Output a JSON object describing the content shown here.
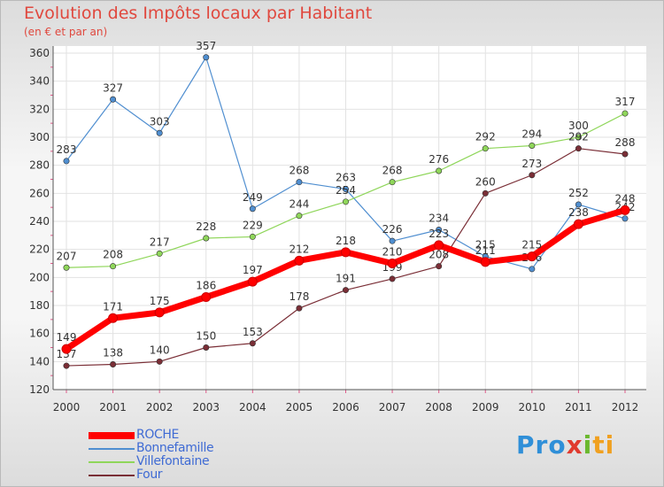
{
  "header": {
    "title": "Evolution des Impôts locaux par Habitant",
    "subtitle": "(en € et par an)"
  },
  "logo": {
    "part1": "Pro",
    "part2": "x",
    "part3": "i",
    "part4": "ti"
  },
  "chart_data": {
    "type": "line",
    "title": "Evolution des Impôts locaux par Habitant",
    "subtitle": "(en € et par an)",
    "xlabel": "",
    "ylabel": "",
    "x": [
      "2000",
      "2001",
      "2002",
      "2003",
      "2004",
      "2005",
      "2006",
      "2007",
      "2008",
      "2009",
      "2010",
      "2011",
      "2012"
    ],
    "ylim": [
      120,
      360
    ],
    "yticks": [
      "120",
      "140",
      "160",
      "180",
      "200",
      "220",
      "240",
      "260",
      "280",
      "300",
      "320",
      "340",
      "360"
    ],
    "grid": true,
    "legend": "bottom-left",
    "series": [
      {
        "name": "Bonnefamille",
        "color": "#4f8ed0",
        "values": [
          283,
          327,
          303,
          357,
          249,
          268,
          263,
          226,
          234,
          215,
          206,
          252,
          242
        ],
        "labels": [
          "283",
          "327",
          "303",
          "357",
          "249",
          "268",
          "263",
          "226",
          "234",
          "215",
          "206",
          "252",
          "242"
        ]
      },
      {
        "name": "Villefontaine",
        "color": "#8fd65a",
        "values": [
          207,
          208,
          217,
          228,
          229,
          244,
          254,
          268,
          276,
          292,
          294,
          300,
          317
        ],
        "labels": [
          "207",
          "208",
          "217",
          "228",
          "229",
          "244",
          "254",
          "268",
          "276",
          "292",
          "294",
          "300",
          "317"
        ]
      },
      {
        "name": "Four",
        "color": "#7a2e36",
        "values": [
          137,
          138,
          140,
          150,
          153,
          178,
          191,
          199,
          208,
          260,
          273,
          292,
          288
        ],
        "labels": [
          "137",
          "138",
          "140",
          "150",
          "153",
          "178",
          "191",
          "199",
          "208",
          "260",
          "273",
          "292",
          "288"
        ]
      },
      {
        "name": "ROCHE",
        "color": "#ff0000",
        "values": [
          149,
          171,
          175,
          186,
          197,
          212,
          218,
          210,
          223,
          211,
          215,
          238,
          248
        ],
        "labels": [
          "149",
          "171",
          "175",
          "186",
          "197",
          "212",
          "218",
          "210",
          "223",
          "211",
          "215",
          "238",
          "248"
        ]
      }
    ],
    "legend_order": [
      "ROCHE",
      "Bonnefamille",
      "Villefontaine",
      "Four"
    ]
  }
}
